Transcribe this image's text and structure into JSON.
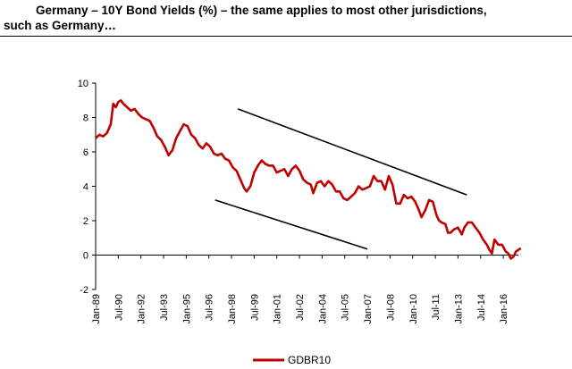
{
  "header": {
    "line1": "Germany – 10Y Bond Yields (%) – the same applies to most other jurisdictions,",
    "line2": "such as Germany…"
  },
  "chart_data": {
    "type": "line",
    "title": "",
    "xlabel": "",
    "ylabel": "",
    "ylim": [
      -2,
      10
    ],
    "yticks": [
      -2,
      0,
      2,
      4,
      6,
      8,
      10
    ],
    "grid": false,
    "legend_position": "bottom-center",
    "x_tick_labels": [
      "Jan-89",
      "Jul-90",
      "Jan-92",
      "Jul-93",
      "Jan-95",
      "Jul-96",
      "Jan-98",
      "Jul-99",
      "Jan-01",
      "Jul-02",
      "Jan-04",
      "Jul-05",
      "Jan-07",
      "Jul-08",
      "Jan-10",
      "Jul-11",
      "Jan-13",
      "Jul-14",
      "Jan-16"
    ],
    "x_range": [
      "1989-01",
      "2017-01"
    ],
    "series": [
      {
        "name": "GDBR10",
        "color": "#c00000",
        "points": [
          [
            "1989-01",
            6.8
          ],
          [
            "1989-04",
            7.0
          ],
          [
            "1989-07",
            6.9
          ],
          [
            "1989-10",
            7.1
          ],
          [
            "1990-01",
            7.6
          ],
          [
            "1990-03",
            8.8
          ],
          [
            "1990-05",
            8.6
          ],
          [
            "1990-07",
            8.9
          ],
          [
            "1990-09",
            9.0
          ],
          [
            "1990-11",
            8.8
          ],
          [
            "1991-02",
            8.6
          ],
          [
            "1991-05",
            8.4
          ],
          [
            "1991-08",
            8.5
          ],
          [
            "1991-11",
            8.2
          ],
          [
            "1992-02",
            8.0
          ],
          [
            "1992-05",
            7.9
          ],
          [
            "1992-08",
            7.8
          ],
          [
            "1992-11",
            7.4
          ],
          [
            "1993-02",
            6.9
          ],
          [
            "1993-05",
            6.7
          ],
          [
            "1993-08",
            6.3
          ],
          [
            "1993-11",
            5.8
          ],
          [
            "1994-02",
            6.1
          ],
          [
            "1994-05",
            6.8
          ],
          [
            "1994-08",
            7.2
          ],
          [
            "1994-11",
            7.6
          ],
          [
            "1995-02",
            7.5
          ],
          [
            "1995-05",
            7.0
          ],
          [
            "1995-08",
            6.8
          ],
          [
            "1995-11",
            6.4
          ],
          [
            "1996-02",
            6.2
          ],
          [
            "1996-05",
            6.5
          ],
          [
            "1996-08",
            6.3
          ],
          [
            "1996-11",
            5.9
          ],
          [
            "1997-02",
            5.8
          ],
          [
            "1997-05",
            5.9
          ],
          [
            "1997-08",
            5.6
          ],
          [
            "1997-11",
            5.5
          ],
          [
            "1998-02",
            5.1
          ],
          [
            "1998-05",
            4.9
          ],
          [
            "1998-08",
            4.4
          ],
          [
            "1998-11",
            3.9
          ],
          [
            "1999-01",
            3.7
          ],
          [
            "1999-04",
            4.0
          ],
          [
            "1999-07",
            4.8
          ],
          [
            "1999-10",
            5.2
          ],
          [
            "2000-01",
            5.5
          ],
          [
            "2000-04",
            5.3
          ],
          [
            "2000-07",
            5.2
          ],
          [
            "2000-10",
            5.2
          ],
          [
            "2001-01",
            4.8
          ],
          [
            "2001-04",
            4.9
          ],
          [
            "2001-07",
            5.0
          ],
          [
            "2001-10",
            4.6
          ],
          [
            "2002-01",
            5.0
          ],
          [
            "2002-04",
            5.2
          ],
          [
            "2002-07",
            4.9
          ],
          [
            "2002-10",
            4.4
          ],
          [
            "2003-01",
            4.2
          ],
          [
            "2003-04",
            4.1
          ],
          [
            "2003-06",
            3.6
          ],
          [
            "2003-09",
            4.2
          ],
          [
            "2003-12",
            4.3
          ],
          [
            "2004-03",
            4.0
          ],
          [
            "2004-06",
            4.3
          ],
          [
            "2004-09",
            4.1
          ],
          [
            "2004-12",
            3.7
          ],
          [
            "2005-03",
            3.7
          ],
          [
            "2005-06",
            3.3
          ],
          [
            "2005-09",
            3.2
          ],
          [
            "2005-12",
            3.4
          ],
          [
            "2006-03",
            3.6
          ],
          [
            "2006-06",
            4.0
          ],
          [
            "2006-09",
            3.8
          ],
          [
            "2006-12",
            3.9
          ],
          [
            "2007-03",
            4.0
          ],
          [
            "2007-06",
            4.6
          ],
          [
            "2007-09",
            4.3
          ],
          [
            "2007-12",
            4.3
          ],
          [
            "2008-03",
            3.8
          ],
          [
            "2008-06",
            4.6
          ],
          [
            "2008-09",
            4.1
          ],
          [
            "2008-12",
            3.0
          ],
          [
            "2009-03",
            3.0
          ],
          [
            "2009-06",
            3.5
          ],
          [
            "2009-09",
            3.3
          ],
          [
            "2009-12",
            3.4
          ],
          [
            "2010-03",
            3.1
          ],
          [
            "2010-06",
            2.6
          ],
          [
            "2010-08",
            2.2
          ],
          [
            "2010-11",
            2.6
          ],
          [
            "2011-02",
            3.2
          ],
          [
            "2011-05",
            3.1
          ],
          [
            "2011-08",
            2.3
          ],
          [
            "2011-10",
            2.0
          ],
          [
            "2011-12",
            1.9
          ],
          [
            "2012-03",
            1.8
          ],
          [
            "2012-05",
            1.3
          ],
          [
            "2012-07",
            1.3
          ],
          [
            "2012-10",
            1.5
          ],
          [
            "2013-01",
            1.6
          ],
          [
            "2013-04",
            1.2
          ],
          [
            "2013-06",
            1.6
          ],
          [
            "2013-09",
            1.9
          ],
          [
            "2013-12",
            1.9
          ],
          [
            "2014-03",
            1.6
          ],
          [
            "2014-06",
            1.3
          ],
          [
            "2014-09",
            0.9
          ],
          [
            "2014-12",
            0.6
          ],
          [
            "2015-02",
            0.3
          ],
          [
            "2015-04",
            0.1
          ],
          [
            "2015-06",
            0.9
          ],
          [
            "2015-09",
            0.6
          ],
          [
            "2015-12",
            0.6
          ],
          [
            "2016-03",
            0.2
          ],
          [
            "2016-05",
            0.1
          ],
          [
            "2016-07",
            -0.2
          ],
          [
            "2016-09",
            -0.1
          ],
          [
            "2016-11",
            0.2
          ],
          [
            "2017-01",
            0.3
          ],
          [
            "2017-03",
            0.4
          ]
        ]
      }
    ],
    "annotations": [
      {
        "type": "trend-line",
        "from": [
          "1998-06",
          8.5
        ],
        "to": [
          "2013-08",
          3.5
        ]
      },
      {
        "type": "trend-line",
        "from": [
          "1996-12",
          3.2
        ],
        "to": [
          "2007-01",
          0.35
        ]
      }
    ]
  }
}
